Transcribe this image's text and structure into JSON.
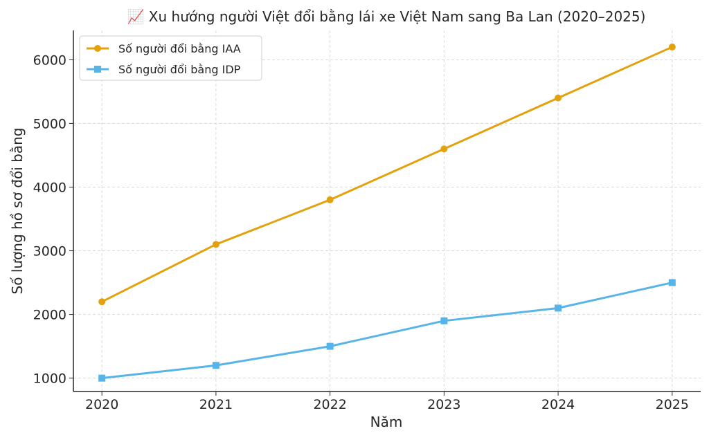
{
  "chart_data": {
    "type": "line",
    "title": "📈 Xu hướng người Việt đổi bằng lái xe Việt Nam sang Ba Lan (2020–2025)",
    "xlabel": "Năm",
    "ylabel": "Số lượng hồ sơ đổi bằng",
    "x": [
      2020,
      2021,
      2022,
      2023,
      2024,
      2025
    ],
    "x_tick_labels": [
      "2020",
      "2021",
      "2022",
      "2023",
      "2024",
      "2025"
    ],
    "y_ticks": [
      1000,
      2000,
      3000,
      4000,
      5000,
      6000
    ],
    "y_tick_labels": [
      "1000",
      "2000",
      "3000",
      "4000",
      "5000",
      "6000"
    ],
    "xlim": [
      2019.75,
      2025.25
    ],
    "ylim": [
      790,
      6460
    ],
    "grid": true,
    "grid_style": "dashed",
    "legend_position": "top-left",
    "series": [
      {
        "name": "Số người đổi bằng IAA",
        "values": [
          2200,
          3100,
          3800,
          4600,
          5400,
          6200
        ],
        "color": "#E3A20C",
        "marker": "circle"
      },
      {
        "name": "Số người đổi bằng IDP",
        "values": [
          1000,
          1200,
          1500,
          1900,
          2100,
          2500
        ],
        "color": "#56B4E9",
        "marker": "square"
      }
    ]
  }
}
